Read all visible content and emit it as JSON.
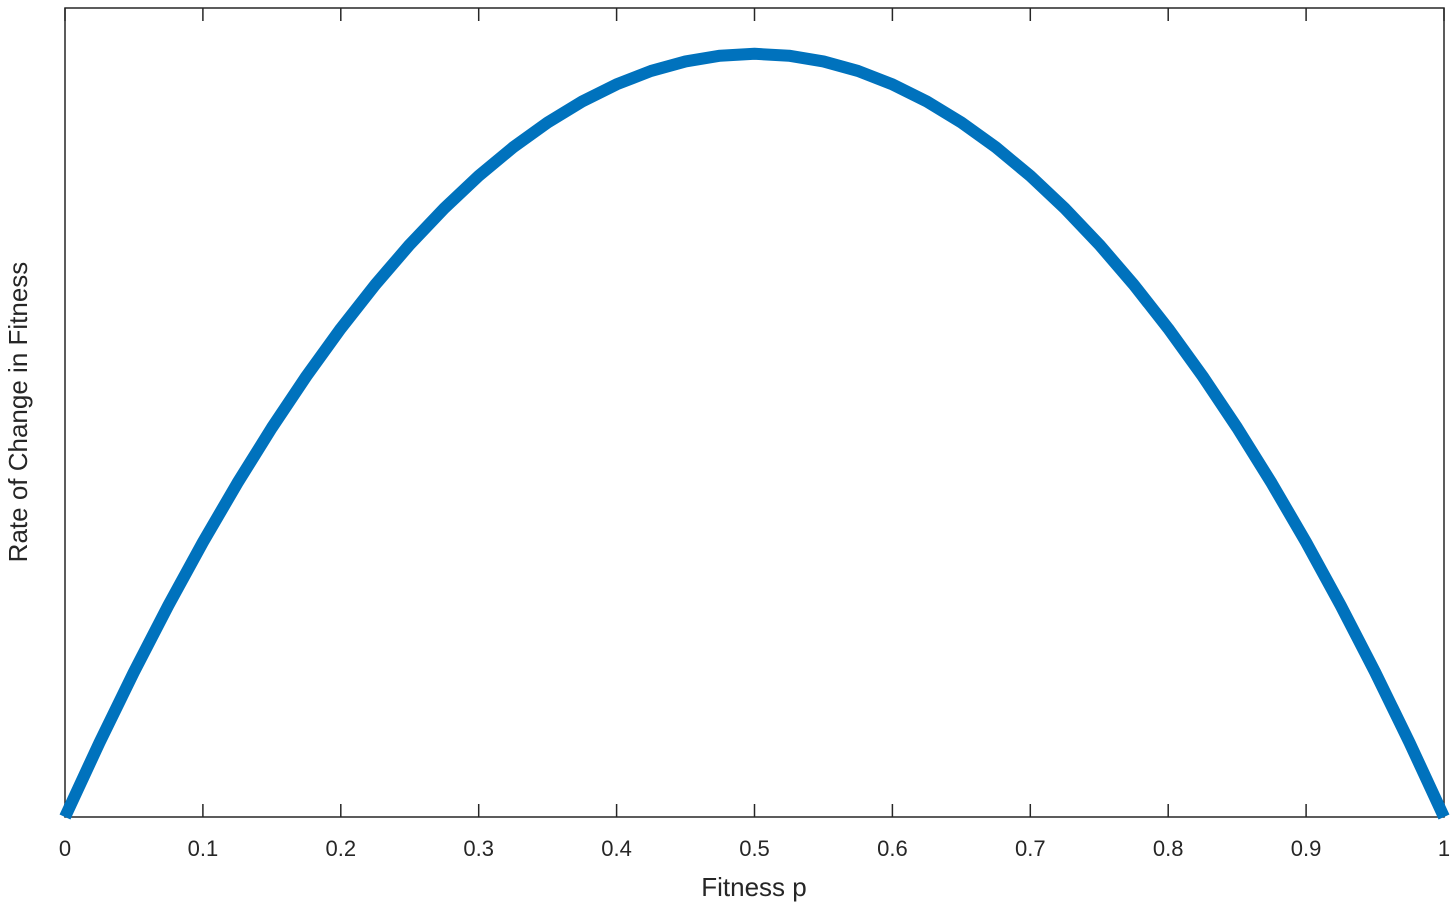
{
  "chart_data": {
    "type": "line",
    "xlabel": "Fitness p",
    "ylabel": "Rate of Change in Fitness",
    "x": [
      0,
      0.025,
      0.05,
      0.075,
      0.1,
      0.125,
      0.15,
      0.175,
      0.2,
      0.225,
      0.25,
      0.275,
      0.3,
      0.325,
      0.35,
      0.375,
      0.4,
      0.425,
      0.45,
      0.475,
      0.5,
      0.525,
      0.55,
      0.575,
      0.6,
      0.625,
      0.65,
      0.675,
      0.7,
      0.725,
      0.75,
      0.775,
      0.8,
      0.825,
      0.85,
      0.875,
      0.9,
      0.925,
      0.95,
      0.975,
      1
    ],
    "series": [
      {
        "color": "#0072bd",
        "values": [
          0,
          0.024375,
          0.0475,
          0.069375,
          0.09,
          0.109375,
          0.1275,
          0.144375,
          0.16,
          0.174375,
          0.1875,
          0.199375,
          0.21,
          0.219375,
          0.2275,
          0.234375,
          0.24,
          0.244375,
          0.2475,
          0.249375,
          0.25,
          0.249375,
          0.2475,
          0.244375,
          0.24,
          0.234375,
          0.2275,
          0.219375,
          0.21,
          0.199375,
          0.1875,
          0.174375,
          0.16,
          0.144375,
          0.1275,
          0.109375,
          0.09,
          0.069375,
          0.0475,
          0.024375,
          0
        ]
      }
    ],
    "xlim": [
      0,
      1
    ],
    "xticks": [
      0,
      0.1,
      0.2,
      0.3,
      0.4,
      0.5,
      0.6,
      0.7,
      0.8,
      0.9,
      1
    ],
    "ylim": [
      0,
      0.265
    ]
  }
}
